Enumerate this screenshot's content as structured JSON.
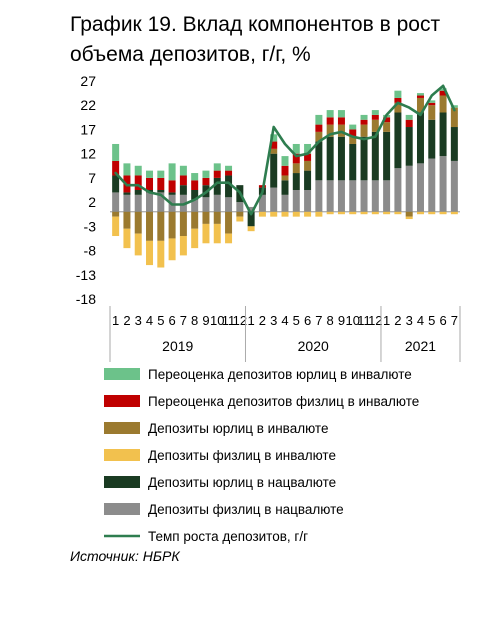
{
  "title": {
    "number": "График 19.",
    "text": "Вклад компонентов в рост объема депозитов, г/г, %"
  },
  "source": "Источник: НБРК",
  "chart_data": {
    "type": "bar",
    "stacked": true,
    "y_ticks": [
      27,
      22,
      17,
      12,
      7,
      2,
      -3,
      -8,
      -13,
      -18
    ],
    "ylim": [
      -18,
      27
    ],
    "months": [
      "1",
      "2",
      "3",
      "4",
      "5",
      "6",
      "7",
      "8",
      "9",
      "10",
      "11",
      "12",
      "1",
      "2",
      "3",
      "4",
      "5",
      "6",
      "7",
      "8",
      "9",
      "10",
      "11",
      "12",
      "1",
      "2",
      "3",
      "4",
      "5",
      "6",
      "7"
    ],
    "years": [
      "2019",
      "2020",
      "2021"
    ],
    "colors": {
      "fx_corp_reval": "#6cc28a",
      "fx_ind_reval": "#c00000",
      "corp_fx": "#9b7a2f",
      "ind_fx": "#f2c14e",
      "corp_kzt": "#1a3b22",
      "ind_kzt": "#8c8c8c",
      "line": "#2e7d4f"
    },
    "series": [
      {
        "key": "fx_corp_reval",
        "name": "Переоценка депозитов юрлиц в инвалюте",
        "values": [
          3.5,
          2.5,
          2,
          1.5,
          1.5,
          3.5,
          2,
          1.5,
          1.5,
          1.5,
          1,
          0,
          0,
          0,
          1.5,
          2,
          2,
          2,
          2,
          1.5,
          1.5,
          1,
          1,
          1,
          0.5,
          1.5,
          1,
          0.5,
          0.5,
          0.5,
          0.5
        ]
      },
      {
        "key": "fx_ind_reval",
        "name": "Переоценка депозитов физлиц в инвалюте",
        "values": [
          3,
          3.5,
          3,
          2.5,
          2.5,
          2.5,
          2,
          2,
          1.5,
          1.5,
          1,
          0,
          0,
          0.5,
          1.5,
          2,
          2,
          1.5,
          1.5,
          1.5,
          1.5,
          1.5,
          1,
          1,
          1,
          1,
          1.5,
          0.5,
          0.5,
          1,
          0
        ]
      },
      {
        "key": "corp_fx",
        "name": "Депозиты юрлиц в инвалюте",
        "values": [
          -1,
          -3.5,
          -4.5,
          -6,
          -6,
          -5.5,
          -5,
          -3.5,
          -2.5,
          -2.5,
          -4.5,
          -1,
          0,
          0,
          1,
          1,
          2,
          2,
          2,
          2.5,
          2.5,
          1.5,
          2.5,
          2.5,
          2,
          2,
          -1,
          3,
          3,
          3.5,
          4
        ]
      },
      {
        "key": "ind_fx",
        "name": "Депозиты физлиц в инвалюте",
        "values": [
          -4,
          -4,
          -4.5,
          -5,
          -5.5,
          -4.5,
          -4,
          -4,
          -4,
          -4,
          -2,
          -1,
          -1,
          -1,
          -1,
          -1,
          -1,
          -1,
          -1,
          -0.5,
          -0.5,
          -0.5,
          -0.5,
          -0.5,
          -0.5,
          -0.5,
          -0.5,
          -0.5,
          -0.5,
          -0.5,
          -0.5
        ]
      },
      {
        "key": "corp_kzt",
        "name": "Депозиты юрлиц в нацвалюте",
        "values": [
          3.5,
          0.5,
          1,
          0.5,
          0.5,
          0.5,
          2,
          2,
          2.5,
          3.5,
          4.5,
          3.5,
          -3,
          1.5,
          7,
          3,
          3.5,
          4,
          8,
          9,
          9,
          7.5,
          9,
          10,
          10,
          11.5,
          8,
          10.5,
          8,
          9,
          7
        ]
      },
      {
        "key": "ind_kzt",
        "name": "Депозиты физлиц в нацвалюте",
        "values": [
          4,
          3.5,
          3.5,
          4,
          4,
          3.5,
          3.5,
          2.5,
          3,
          3.5,
          3,
          2,
          1,
          3.5,
          5,
          3.5,
          4.5,
          4.5,
          6.5,
          6.5,
          6.5,
          6.5,
          6.5,
          6.5,
          6.5,
          9,
          9.5,
          10,
          11,
          11.5,
          10.5
        ]
      }
    ],
    "line": {
      "name": "Темп роста депозитов, г/г",
      "values": [
        8,
        5.5,
        5.5,
        4,
        3.5,
        1.5,
        1.5,
        2.5,
        4,
        6,
        6,
        4,
        -0.5,
        4,
        17.5,
        14,
        11.5,
        12,
        14.5,
        16,
        16.5,
        15.5,
        15,
        15.5,
        20,
        22.5,
        21.5,
        20,
        24,
        26,
        21
      ]
    }
  }
}
